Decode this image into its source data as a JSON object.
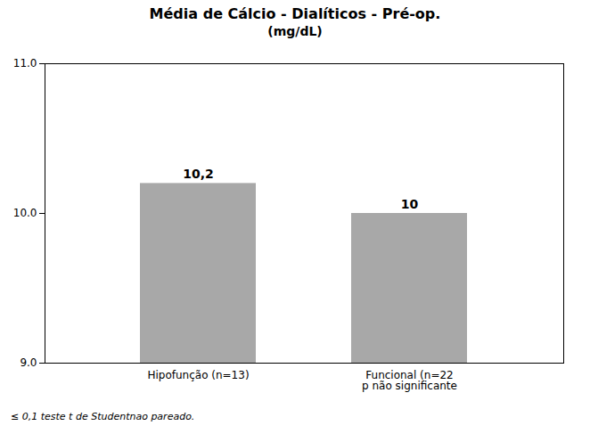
{
  "chart_data": {
    "type": "bar",
    "title": "Média de Cálcio - Dialíticos - Pré-op.",
    "subtitle": "(mg/dL)",
    "categories": [
      "Hipofunção (n=13)",
      "Funcional (n=22\np não significante"
    ],
    "values": [
      10.2,
      10.0
    ],
    "value_labels": [
      "10,2",
      "10"
    ],
    "data_labels": true,
    "color": "#a8a8a8",
    "ylim": [
      9,
      11
    ],
    "yticks": [
      9,
      10,
      11
    ],
    "grid": false,
    "caption": "≤ 0,1 teste  t de Studentnao pareado."
  }
}
